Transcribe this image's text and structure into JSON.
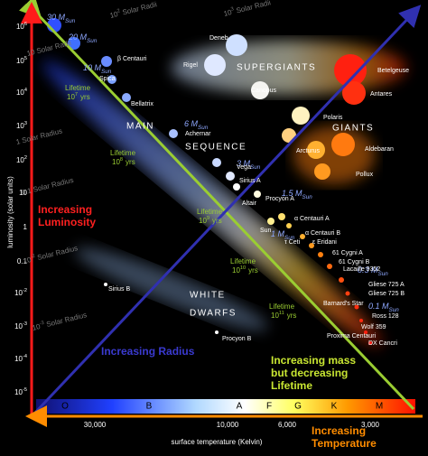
{
  "y_axis": {
    "label": "luminosity (solar units)",
    "ticks": [
      {
        "text": "10",
        "sup": "6"
      },
      {
        "text": "10",
        "sup": "5"
      },
      {
        "text": "10",
        "sup": "4"
      },
      {
        "text": "10",
        "sup": "3"
      },
      {
        "text": "10",
        "sup": "2"
      },
      {
        "text": "10"
      },
      {
        "text": "1"
      },
      {
        "text": "0.1"
      },
      {
        "text": "10",
        "sup": "-2"
      },
      {
        "text": "10",
        "sup": "-3"
      },
      {
        "text": "10",
        "sup": "-4"
      },
      {
        "text": "10",
        "sup": "-5"
      }
    ]
  },
  "x_axis": {
    "label": "surface temperature (Kelvin)",
    "ticks": [
      "30,000",
      "10,000",
      "6,000",
      "3,000"
    ]
  },
  "spectral_classes": [
    "O",
    "B",
    "A",
    "F",
    "G",
    "K",
    "M"
  ],
  "arrow_labels": {
    "luminosity": [
      "Increasing",
      "Luminosity"
    ],
    "radius": [
      "Increasing Radius"
    ],
    "mass": [
      "Increasing mass",
      "but decreasing",
      "Lifetime"
    ],
    "temperature": [
      "Increasing",
      "Temperature"
    ]
  },
  "regions": [
    "SUPERGIANTS",
    "GIANTS",
    "MAIN",
    "SEQUENCE",
    "WHITE",
    "DWARFS"
  ],
  "lifetimes": [
    {
      "label": "Lifetime",
      "text": "10",
      "sup": "7",
      "unit": "yrs"
    },
    {
      "label": "Lifetime",
      "text": "10",
      "sup": "8",
      "unit": "yrs"
    },
    {
      "label": "Lifetime",
      "text": "10",
      "sup": "9",
      "unit": "yrs"
    },
    {
      "label": "Lifetime",
      "text": "10",
      "sup": "10",
      "unit": "yrs"
    },
    {
      "label": "Lifetime",
      "text": "10",
      "sup": "11",
      "unit": "yrs"
    }
  ],
  "radius_lines": [
    {
      "text": "10",
      "sup": "3",
      "rest": " Solar Radii"
    },
    {
      "text": "10",
      "sup": "2",
      "rest": " Solar Radii"
    },
    {
      "text": "10 Solar Radii"
    },
    {
      "text": "1 Solar Radius"
    },
    {
      "text": "0.1 Solar Radius"
    },
    {
      "text": "10",
      "sup": "-2",
      "rest": " Solar Radius"
    },
    {
      "text": "10",
      "sup": "-3",
      "rest": " Solar Radius"
    }
  ],
  "masses": [
    {
      "text": "30 M",
      "sub": "Sun"
    },
    {
      "text": "20 M",
      "sub": "Sun"
    },
    {
      "text": "10 M",
      "sub": "Sun"
    },
    {
      "text": "6 M",
      "sub": "Sun"
    },
    {
      "text": "3 M",
      "sub": "Sun"
    },
    {
      "text": "1.5 M",
      "sub": "Sun"
    },
    {
      "text": "1 M",
      "sub": "Sun"
    },
    {
      "text": "0.3 M",
      "sub": "Sun"
    },
    {
      "text": "0.1 M",
      "sub": "Sun"
    }
  ],
  "stars": [
    "Deneb",
    "Rigel",
    "Betelgeuse",
    "Antares",
    "Canopus",
    "Polaris",
    "β Centauri",
    "Spica",
    "Bellatrix",
    "Achernar",
    "Arcturus",
    "Aldebaran",
    "Pollux",
    "Vega",
    "Sirius A",
    "Procyon A",
    "Altair",
    "α Centauri A",
    "Sun",
    "α Centauri B",
    "τ Ceti",
    "ε Eridani",
    "61 Cygni A",
    "61 Cygni B",
    "Lacaille 9352",
    "Gliese 725 A",
    "Gliese 725 B",
    "Barnard's Star",
    "Ross 128",
    "Wolf 359",
    "Proxima Centauri",
    "DX Cancri",
    "Sirius B",
    "Procyon B"
  ]
}
